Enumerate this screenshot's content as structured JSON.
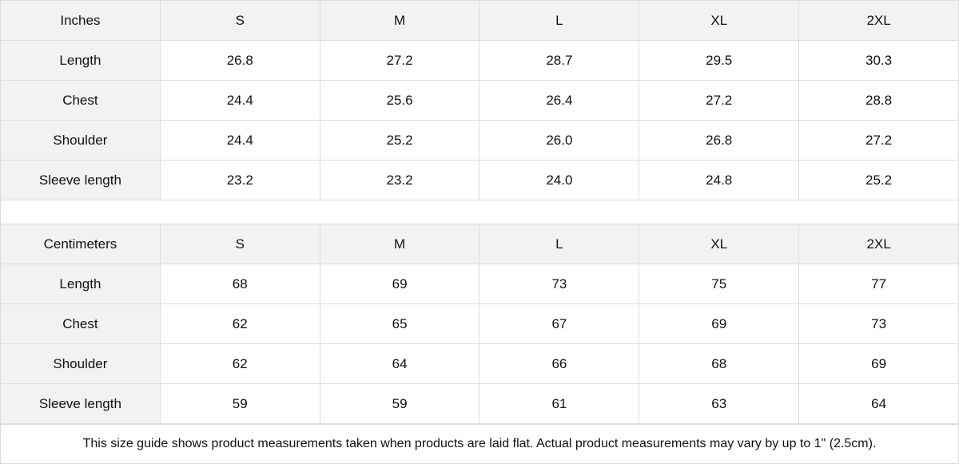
{
  "tables": [
    {
      "unit": "Inches",
      "sizes": [
        "S",
        "M",
        "L",
        "XL",
        "2XL"
      ],
      "rows": [
        {
          "label": "Length",
          "values": [
            "26.8",
            "27.2",
            "28.7",
            "29.5",
            "30.3"
          ]
        },
        {
          "label": "Chest",
          "values": [
            "24.4",
            "25.6",
            "26.4",
            "27.2",
            "28.8"
          ]
        },
        {
          "label": "Shoulder",
          "values": [
            "24.4",
            "25.2",
            "26.0",
            "26.8",
            "27.2"
          ]
        },
        {
          "label": "Sleeve length",
          "values": [
            "23.2",
            "23.2",
            "24.0",
            "24.8",
            "25.2"
          ]
        }
      ]
    },
    {
      "unit": "Centimeters",
      "sizes": [
        "S",
        "M",
        "L",
        "XL",
        "2XL"
      ],
      "rows": [
        {
          "label": "Length",
          "values": [
            "68",
            "69",
            "73",
            "75",
            "77"
          ]
        },
        {
          "label": "Chest",
          "values": [
            "62",
            "65",
            "67",
            "69",
            "73"
          ]
        },
        {
          "label": "Shoulder",
          "values": [
            "62",
            "64",
            "66",
            "68",
            "69"
          ]
        },
        {
          "label": "Sleeve length",
          "values": [
            "59",
            "59",
            "61",
            "63",
            "64"
          ]
        }
      ]
    }
  ],
  "note": "This size guide shows product measurements taken when products are laid flat.  Actual product measurements may vary by up to 1\" (2.5cm).",
  "colors": {
    "header_bg": "#f2f2f2",
    "border": "#dcdcdc"
  }
}
